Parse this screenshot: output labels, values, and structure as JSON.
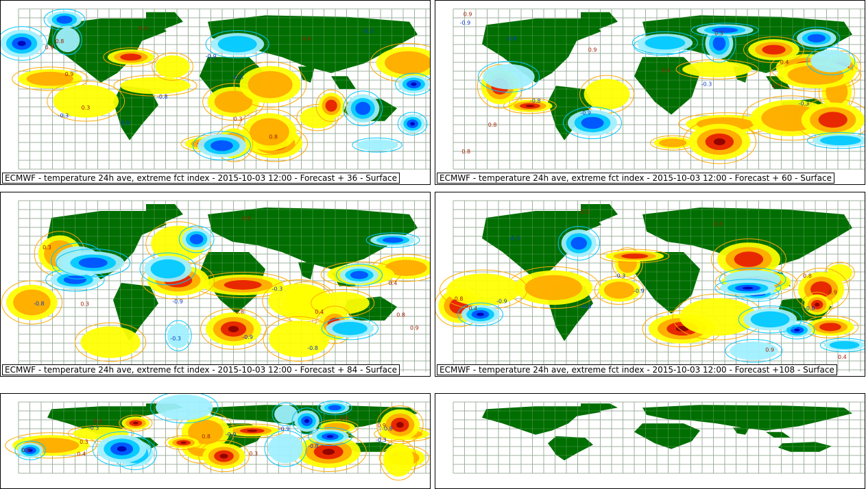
{
  "panels": [
    {
      "caption": "ECMWF - temperature 24h ave, extreme fct index - 2015-10-03 12:00 - Forecast + 36 - Surface",
      "has_data": true
    },
    {
      "caption": "ECMWF - temperature 24h ave, extreme fct index - 2015-10-03 12:00 - Forecast + 60 - Surface",
      "has_data": true
    },
    {
      "caption": "ECMWF - temperature 24h ave, extreme fct index - 2015-10-03 12:00 - Forecast + 84 - Surface",
      "has_data": true
    },
    {
      "caption": "ECMWF - temperature 24h ave, extreme fct index - 2015-10-03 12:00 - Forecast +108 - Surface",
      "has_data": true
    },
    {
      "caption": "",
      "has_data": true
    },
    {
      "caption": "",
      "has_data": false
    }
  ],
  "contour_labels": [
    "0.8",
    "0.9",
    "-0.8",
    "-0.9",
    "0.3",
    "-0.3",
    "0.4"
  ],
  "colors": {
    "land": "#006e00",
    "grid": "#b4b4b4",
    "warm_light": "#ffff00",
    "warm_mid": "#ffaa00",
    "warm_high": "#e61e00",
    "warm_extreme": "#8c0000",
    "cold_light": "#9ff0ff",
    "cold_mid": "#00c8ff",
    "cold_high": "#0050ff",
    "cold_extreme": "#0000b4"
  }
}
